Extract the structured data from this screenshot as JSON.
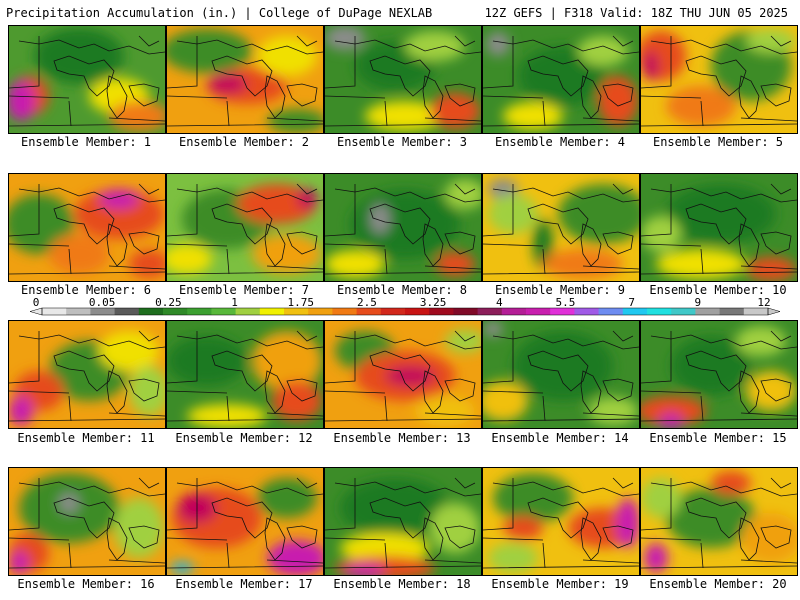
{
  "header": {
    "title": "Precipitation Accumulation (in.) | College of DuPage NEXLAB",
    "run_info": "12Z GEFS | F318 Valid: 18Z THU JUN 05 2025"
  },
  "panels": [
    {
      "label": "Ensemble Member: 1",
      "base": "#4e9a2f",
      "blobs": [
        [
          "#1f7a23",
          70,
          30,
          45,
          28
        ],
        [
          "#f0e000",
          110,
          70,
          30,
          18
        ],
        [
          "#e64c1c",
          20,
          70,
          20,
          20
        ],
        [
          "#c81fae",
          12,
          75,
          14,
          20
        ],
        [
          "#f07a14",
          130,
          90,
          30,
          15
        ]
      ]
    },
    {
      "label": "Ensemble Member: 2",
      "base": "#f0a010",
      "blobs": [
        [
          "#3c8c28",
          40,
          25,
          45,
          22
        ],
        [
          "#e64c1c",
          80,
          60,
          40,
          18
        ],
        [
          "#c2005a",
          60,
          58,
          20,
          10
        ],
        [
          "#f0e000",
          120,
          30,
          30,
          20
        ],
        [
          "#3c8c28",
          130,
          95,
          30,
          12
        ]
      ]
    },
    {
      "label": "Ensemble Member: 3",
      "base": "#3c8c28",
      "blobs": [
        [
          "#8c8c8c",
          20,
          12,
          20,
          12
        ],
        [
          "#1f7a23",
          70,
          40,
          40,
          25
        ],
        [
          "#f0e000",
          80,
          90,
          40,
          15
        ],
        [
          "#e64c1c",
          130,
          85,
          25,
          18
        ],
        [
          "#a0d040",
          110,
          20,
          30,
          15
        ]
      ]
    },
    {
      "label": "Ensemble Member: 4",
      "base": "#3c8c28",
      "blobs": [
        [
          "#8c8c8c",
          15,
          18,
          12,
          12
        ],
        [
          "#1f7a23",
          80,
          50,
          45,
          30
        ],
        [
          "#f0e000",
          50,
          90,
          30,
          14
        ],
        [
          "#e64c1c",
          135,
          75,
          20,
          25
        ],
        [
          "#a0d040",
          120,
          25,
          25,
          15
        ]
      ]
    },
    {
      "label": "Ensemble Member: 5",
      "base": "#f0c010",
      "blobs": [
        [
          "#e64c1c",
          20,
          30,
          25,
          25
        ],
        [
          "#3c8c28",
          110,
          40,
          40,
          35
        ],
        [
          "#c2005a",
          10,
          40,
          8,
          15
        ],
        [
          "#f07a14",
          60,
          80,
          35,
          20
        ],
        [
          "#a0d040",
          130,
          15,
          25,
          12
        ]
      ]
    },
    {
      "label": "Ensemble Member: 6",
      "base": "#f0a010",
      "blobs": [
        [
          "#3c8c28",
          30,
          50,
          35,
          30
        ],
        [
          "#e64c1c",
          110,
          40,
          45,
          25
        ],
        [
          "#c81fae",
          110,
          25,
          20,
          10
        ],
        [
          "#f07a14",
          70,
          80,
          30,
          20
        ],
        [
          "#e64c1c",
          140,
          90,
          20,
          14
        ]
      ]
    },
    {
      "label": "Ensemble Member: 7",
      "base": "#7cc040",
      "blobs": [
        [
          "#3c8c28",
          60,
          45,
          45,
          30
        ],
        [
          "#e64c1c",
          110,
          30,
          40,
          20
        ],
        [
          "#f0a010",
          120,
          80,
          35,
          20
        ],
        [
          "#c2005a",
          140,
          25,
          10,
          10
        ],
        [
          "#f0e000",
          20,
          85,
          25,
          15
        ]
      ]
    },
    {
      "label": "Ensemble Member: 8",
      "base": "#3c8c28",
      "blobs": [
        [
          "#1f7a23",
          80,
          50,
          55,
          35
        ],
        [
          "#8c8c8c",
          55,
          45,
          10,
          15
        ],
        [
          "#f0e000",
          30,
          90,
          30,
          14
        ],
        [
          "#e64c1c",
          130,
          90,
          20,
          12
        ],
        [
          "#a0d040",
          140,
          20,
          20,
          15
        ]
      ]
    },
    {
      "label": "Ensemble Member: 9",
      "base": "#f0c010",
      "blobs": [
        [
          "#3c8c28",
          120,
          40,
          45,
          30
        ],
        [
          "#8c8c8c",
          20,
          15,
          15,
          10
        ],
        [
          "#1f7a23",
          60,
          70,
          10,
          25
        ],
        [
          "#f07a14",
          100,
          90,
          40,
          15
        ],
        [
          "#a0d040",
          30,
          40,
          25,
          20
        ]
      ]
    },
    {
      "label": "Ensemble Member: 10",
      "base": "#3c8c28",
      "blobs": [
        [
          "#1f7a23",
          80,
          40,
          55,
          30
        ],
        [
          "#f0e000",
          60,
          90,
          45,
          15
        ],
        [
          "#e64c1c",
          130,
          95,
          25,
          12
        ],
        [
          "#a0d040",
          20,
          60,
          20,
          18
        ]
      ]
    },
    {
      "label": "Ensemble Member: 11",
      "base": "#f0a010",
      "blobs": [
        [
          "#3c8c28",
          80,
          50,
          40,
          30
        ],
        [
          "#e64c1c",
          30,
          70,
          25,
          20
        ],
        [
          "#c81fae",
          12,
          90,
          12,
          15
        ],
        [
          "#f0e000",
          120,
          30,
          30,
          20
        ],
        [
          "#a0d040",
          140,
          70,
          20,
          25
        ]
      ]
    },
    {
      "label": "Ensemble Member: 12",
      "base": "#3c8c28",
      "blobs": [
        [
          "#1f7a23",
          40,
          40,
          40,
          25
        ],
        [
          "#f0a010",
          120,
          40,
          35,
          30
        ],
        [
          "#e64c1c",
          130,
          80,
          25,
          20
        ],
        [
          "#f0e000",
          60,
          95,
          40,
          12
        ]
      ]
    },
    {
      "label": "Ensemble Member: 13",
      "base": "#f0a010",
      "blobs": [
        [
          "#3c8c28",
          40,
          30,
          30,
          20
        ],
        [
          "#e64c1c",
          80,
          55,
          50,
          25
        ],
        [
          "#c2005a",
          85,
          55,
          25,
          10
        ],
        [
          "#f0c010",
          120,
          90,
          30,
          15
        ],
        [
          "#a0d040",
          140,
          20,
          20,
          12
        ]
      ]
    },
    {
      "label": "Ensemble Member: 14",
      "base": "#3c8c28",
      "blobs": [
        [
          "#1f7a23",
          80,
          45,
          50,
          35
        ],
        [
          "#8c8c8c",
          10,
          8,
          10,
          8
        ],
        [
          "#f0c010",
          20,
          80,
          25,
          20
        ],
        [
          "#a0d040",
          130,
          90,
          25,
          14
        ]
      ]
    },
    {
      "label": "Ensemble Member: 15",
      "base": "#3c8c28",
      "blobs": [
        [
          "#1f7a23",
          70,
          45,
          40,
          30
        ],
        [
          "#e64c1c",
          30,
          90,
          35,
          15
        ],
        [
          "#c81fae",
          30,
          100,
          12,
          8
        ],
        [
          "#f0c010",
          130,
          70,
          25,
          20
        ],
        [
          "#a0d040",
          120,
          20,
          25,
          15
        ]
      ]
    },
    {
      "label": "Ensemble Member: 16",
      "base": "#f0a010",
      "blobs": [
        [
          "#3c8c28",
          60,
          40,
          50,
          35
        ],
        [
          "#8c8c8c",
          60,
          35,
          10,
          10
        ],
        [
          "#e64c1c",
          20,
          85,
          20,
          20
        ],
        [
          "#c81fae",
          10,
          95,
          10,
          12
        ],
        [
          "#a0d040",
          130,
          60,
          25,
          30
        ]
      ]
    },
    {
      "label": "Ensemble Member: 17",
      "base": "#f0a010",
      "blobs": [
        [
          "#e64c1c",
          50,
          50,
          45,
          30
        ],
        [
          "#c2005a",
          30,
          40,
          20,
          15
        ],
        [
          "#c81fae",
          130,
          90,
          30,
          18
        ],
        [
          "#20b0e0",
          15,
          100,
          12,
          6
        ],
        [
          "#3c8c28",
          120,
          30,
          30,
          20
        ]
      ]
    },
    {
      "label": "Ensemble Member: 18",
      "base": "#3c8c28",
      "blobs": [
        [
          "#1f7a23",
          70,
          40,
          55,
          30
        ],
        [
          "#f0e000",
          60,
          80,
          45,
          15
        ],
        [
          "#e64c1c",
          60,
          100,
          50,
          12
        ],
        [
          "#c81fae",
          40,
          102,
          20,
          6
        ],
        [
          "#a0d040",
          130,
          60,
          25,
          25
        ]
      ]
    },
    {
      "label": "Ensemble Member: 19",
      "base": "#f0c010",
      "blobs": [
        [
          "#3c8c28",
          50,
          30,
          40,
          25
        ],
        [
          "#e64c1c",
          40,
          60,
          20,
          12
        ],
        [
          "#e64c1c",
          120,
          60,
          35,
          20
        ],
        [
          "#c81fae",
          145,
          55,
          12,
          25
        ],
        [
          "#a0d040",
          30,
          90,
          25,
          15
        ]
      ]
    },
    {
      "label": "Ensemble Member: 20",
      "base": "#f0c010",
      "blobs": [
        [
          "#3c8c28",
          70,
          50,
          45,
          30
        ],
        [
          "#e64c1c",
          90,
          15,
          20,
          12
        ],
        [
          "#c81fae",
          15,
          90,
          12,
          15
        ],
        [
          "#f0a010",
          130,
          70,
          30,
          25
        ],
        [
          "#a0d040",
          20,
          30,
          20,
          20
        ]
      ]
    }
  ],
  "legend": {
    "tick_labels": [
      "0",
      "0.05",
      "0.25",
      "1",
      "1.75",
      "2.5",
      "3.25",
      "4",
      "5.5",
      "7",
      "9",
      "12"
    ],
    "colors": [
      "#e8e8e8",
      "#bebebe",
      "#8c8c8c",
      "#5a5a5a",
      "#1e6e1e",
      "#2f8a28",
      "#3ca030",
      "#58b83a",
      "#a0d040",
      "#f0f000",
      "#f0c010",
      "#f0a010",
      "#f07a14",
      "#e64c1c",
      "#d2281c",
      "#c81414",
      "#a00a1e",
      "#800a28",
      "#8c1e5a",
      "#b41e96",
      "#c81fae",
      "#e030d8",
      "#a05ae6",
      "#6e8cf0",
      "#20c8f0",
      "#20e0e0",
      "#40c8c8",
      "#a0a0a0",
      "#787878",
      "#c8c8c8"
    ]
  }
}
